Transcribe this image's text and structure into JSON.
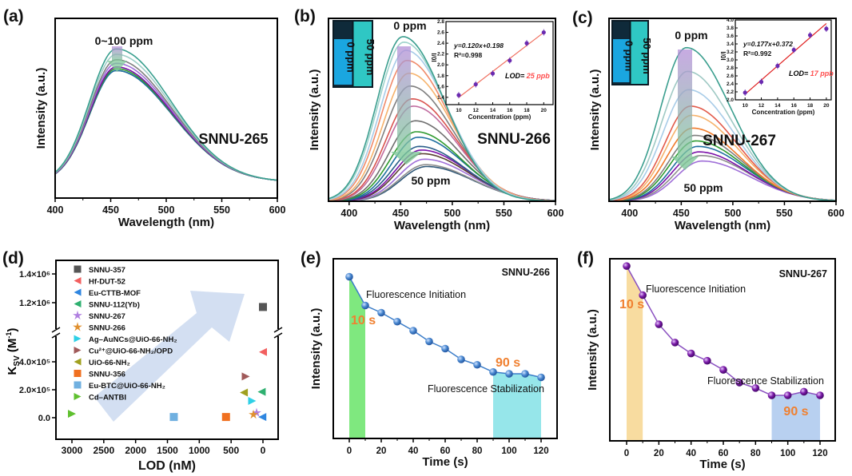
{
  "panel_labels": [
    "(a)",
    "(b)",
    "(c)",
    "(d)",
    "(e)",
    "(f)"
  ],
  "colors": {
    "highlight": "#f08030",
    "lod_value": "#ff4d4d",
    "fit_line_b": "#f07060",
    "fit_line_c": "#e02020",
    "inset_points": "#6a2ab0"
  },
  "chart_data": [
    {
      "type": "line",
      "xlabel": "Wavelength (nm)",
      "ylabel": "Intensity (a.u.)",
      "xlim": [
        400,
        600
      ],
      "xticks": [
        "400",
        "450",
        "500",
        "550",
        "600"
      ],
      "annotations": {
        "range": "0~100 ppm",
        "sample": "SNNU-265"
      },
      "series": [
        {
          "peak_wavelength": 455,
          "peak_intensity": 0.83,
          "color": "#3aa08f"
        },
        {
          "peak_wavelength": 455,
          "peak_intensity": 0.8,
          "color": "#9fcfc8"
        },
        {
          "peak_wavelength": 455,
          "peak_intensity": 0.77,
          "color": "#7f7f7f"
        },
        {
          "peak_wavelength": 455,
          "peak_intensity": 0.75,
          "color": "#a070d8"
        },
        {
          "peak_wavelength": 455,
          "peak_intensity": 0.73,
          "color": "#7a10a8"
        },
        {
          "peak_wavelength": 455,
          "peak_intensity": 0.72,
          "color": "#2e9a2e"
        },
        {
          "peak_wavelength": 455,
          "peak_intensity": 0.71,
          "color": "#1f6fa0"
        },
        {
          "peak_wavelength": 455,
          "peak_intensity": 0.71,
          "color": "#2f5878"
        }
      ]
    },
    {
      "type": "line",
      "xlabel": "Wavelength (nm)",
      "ylabel": "Intensity (a.u.)",
      "xlim": [
        380,
        600
      ],
      "xticks": [
        "400",
        "450",
        "500",
        "550",
        "600"
      ],
      "annotations": {
        "top": "0 ppm",
        "bottom": "50 ppm",
        "sample": "SNNU-266"
      },
      "vials": [
        "0 ppm",
        "50 ppm"
      ],
      "series": [
        {
          "peak_wavelength": 452,
          "peak_intensity": 0.9,
          "color": "#3a9e8e"
        },
        {
          "peak_wavelength": 453,
          "peak_intensity": 0.87,
          "color": "#9fd3cc"
        },
        {
          "peak_wavelength": 455,
          "peak_intensity": 0.825,
          "color": "#a8cce8"
        },
        {
          "peak_wavelength": 456,
          "peak_intensity": 0.77,
          "color": "#f08a6a"
        },
        {
          "peak_wavelength": 458,
          "peak_intensity": 0.7,
          "color": "#f6b26b"
        },
        {
          "peak_wavelength": 459,
          "peak_intensity": 0.63,
          "color": "#7f7f7f"
        },
        {
          "peak_wavelength": 461,
          "peak_intensity": 0.56,
          "color": "#d9534f"
        },
        {
          "peak_wavelength": 462,
          "peak_intensity": 0.52,
          "color": "#c06c9f"
        },
        {
          "peak_wavelength": 464,
          "peak_intensity": 0.44,
          "color": "#6f6f6f"
        },
        {
          "peak_wavelength": 465,
          "peak_intensity": 0.38,
          "color": "#2e9a2e"
        },
        {
          "peak_wavelength": 467,
          "peak_intensity": 0.35,
          "color": "#1f6fa0"
        },
        {
          "peak_wavelength": 468,
          "peak_intensity": 0.3,
          "color": "#2a5e8a"
        },
        {
          "peak_wavelength": 470,
          "peak_intensity": 0.28,
          "color": "#7a10a8"
        },
        {
          "peak_wavelength": 471,
          "peak_intensity": 0.26,
          "color": "#5a4030"
        },
        {
          "peak_wavelength": 473,
          "peak_intensity": 0.23,
          "color": "#a070d8"
        },
        {
          "peak_wavelength": 474,
          "peak_intensity": 0.2,
          "color": "#8e8e8e"
        },
        {
          "peak_wavelength": 475,
          "peak_intensity": 0.19,
          "color": "#2f5878"
        }
      ],
      "inset": {
        "type": "scatter",
        "xlabel": "Concentration (ppm)",
        "ylabel": "I0/I",
        "xlim": [
          8.5,
          21.1
        ],
        "ylim": [
          1.265,
          2.8
        ],
        "xticks": [
          10,
          12,
          14,
          16,
          18,
          20
        ],
        "yticks": [
          1.4,
          1.6,
          1.8,
          2.0,
          2.2,
          2.4,
          2.6,
          2.8
        ],
        "x": [
          10,
          12,
          14,
          16,
          18,
          20
        ],
        "y": [
          1.44,
          1.64,
          1.84,
          2.08,
          2.4,
          2.6
        ],
        "fit": {
          "slope": 0.12,
          "intercept": 0.198
        },
        "equation": "y=0.120x+0.198",
        "r2_label": "R²=0.998",
        "lod_label": "LOD= ",
        "lod_value": "25 ppb"
      }
    },
    {
      "type": "line",
      "xlabel": "Wavelength (nm)",
      "ylabel": "Intensity (a.u.)",
      "xlim": [
        380,
        600
      ],
      "xticks": [
        "400",
        "450",
        "500",
        "550",
        "600"
      ],
      "annotations": {
        "top": "0 ppm",
        "bottom": "50 ppm",
        "sample": "SNNU-267"
      },
      "vials": [
        "0 ppm",
        "50 ppm"
      ],
      "series": [
        {
          "peak_wavelength": 455,
          "peak_intensity": 0.84,
          "color": "#3a9e8e"
        },
        {
          "peak_wavelength": 456,
          "peak_intensity": 0.71,
          "color": "#9fc9c4"
        },
        {
          "peak_wavelength": 457,
          "peak_intensity": 0.61,
          "color": "#a8cce8"
        },
        {
          "peak_wavelength": 459,
          "peak_intensity": 0.52,
          "color": "#e25a4a"
        },
        {
          "peak_wavelength": 460,
          "peak_intensity": 0.47,
          "color": "#f6b26b"
        },
        {
          "peak_wavelength": 461,
          "peak_intensity": 0.4,
          "color": "#f07a2a"
        },
        {
          "peak_wavelength": 463,
          "peak_intensity": 0.36,
          "color": "#7f7f7f"
        },
        {
          "peak_wavelength": 464,
          "peak_intensity": 0.33,
          "color": "#2e9a2e"
        },
        {
          "peak_wavelength": 466,
          "peak_intensity": 0.3,
          "color": "#1f6fa0"
        },
        {
          "peak_wavelength": 467,
          "peak_intensity": 0.27,
          "color": "#7a10a8"
        },
        {
          "peak_wavelength": 469,
          "peak_intensity": 0.25,
          "color": "#8e8e8e"
        },
        {
          "peak_wavelength": 470,
          "peak_intensity": 0.22,
          "color": "#a070d8"
        }
      ],
      "inset": {
        "type": "scatter",
        "xlabel": "Concentration (ppm)",
        "ylabel": "I0/I",
        "xlim": [
          8.8,
          20.6
        ],
        "ylim": [
          2.0,
          4.0
        ],
        "xticks": [
          10,
          12,
          14,
          16,
          18,
          20
        ],
        "yticks": [
          2.0,
          2.2,
          2.4,
          2.6,
          2.8,
          3.0,
          3.2,
          3.4,
          3.6,
          3.8,
          4.0
        ],
        "x": [
          10,
          12,
          14,
          16,
          18,
          20
        ],
        "y": [
          2.18,
          2.45,
          2.85,
          3.25,
          3.62,
          3.78
        ],
        "fit": {
          "slope": 0.177,
          "intercept": 0.372
        },
        "equation": "y=0.177x+0.372",
        "r2_label": "R²=0.992",
        "lod_label": "LOD= ",
        "lod_value": "17 ppb"
      }
    },
    {
      "type": "scatter",
      "xlabel": "LOD (nM)",
      "ylabel_parts": {
        "main": "K",
        "sub": "SV",
        "unit": " (M",
        "sup": "-1",
        "close": ")"
      },
      "xlim": [
        3250,
        -240
      ],
      "x_reversed": true,
      "y_axis_break": [
        606000,
        990000
      ],
      "xticks": [
        {
          "v": 3000,
          "label": "3000"
        },
        {
          "v": 2500,
          "label": "2500"
        },
        {
          "v": 2000,
          "label": "2000"
        },
        {
          "v": 1500,
          "label": "1500"
        },
        {
          "v": 1000,
          "label": "1000"
        },
        {
          "v": 500,
          "label": "500"
        },
        {
          "v": 0,
          "label": "0"
        }
      ],
      "yticks": [
        {
          "v": 0,
          "label": "0.0"
        },
        {
          "v": 200000,
          "label": "2.0×10⁵"
        },
        {
          "v": 400000,
          "label": "4.0×10⁵"
        },
        {
          "v": 1200000,
          "label": "1.2×10⁶"
        },
        {
          "v": 1400000,
          "label": "1.4×10⁶"
        }
      ],
      "legend_position": "top-left",
      "points": [
        {
          "name": "SNNU-357",
          "lod": 0,
          "ksv": 1170000,
          "marker": "square",
          "color": "#555555"
        },
        {
          "name": "Hf-DUT-52",
          "lod": 0,
          "ksv": 470000,
          "marker": "triangle-left",
          "color": "#f25f5f"
        },
        {
          "name": "Eu-CTTB-MOF",
          "lod": 10,
          "ksv": 5000,
          "marker": "triangle-left",
          "color": "#2f86e0"
        },
        {
          "name": "SNNU-112(Yb)",
          "lod": 20,
          "ksv": 185000,
          "marker": "triangle-left",
          "color": "#2fb070"
        },
        {
          "name": "SNNU-267",
          "lod": 100,
          "ksv": 35000,
          "marker": "star",
          "color": "#b07fe0"
        },
        {
          "name": "SNNU-266",
          "lod": 150,
          "ksv": 22000,
          "marker": "star",
          "color": "#e0902f"
        },
        {
          "name": "Ag–AuNCs@UiO-66-NH₂",
          "lod": 170,
          "ksv": 120000,
          "marker": "triangle-right",
          "color": "#2fd0e6"
        },
        {
          "name": "Cu²⁺@UiO-66-NH₂/OPD",
          "lod": 270,
          "ksv": 295000,
          "marker": "triangle-right",
          "color": "#a05a5a"
        },
        {
          "name": "UiO-66-NH₂",
          "lod": 300,
          "ksv": 180000,
          "marker": "triangle-left",
          "color": "#a0a01f"
        },
        {
          "name": "SNNU-356",
          "lod": 580,
          "ksv": 5000,
          "marker": "square",
          "color": "#f07020"
        },
        {
          "name": "Eu-BTC@UiO-66-NH₂",
          "lod": 1400,
          "ksv": 5000,
          "marker": "square",
          "color": "#70b0e0"
        },
        {
          "name": "Cd–ANTBI",
          "lod": 3000,
          "ksv": 28000,
          "marker": "triangle-right",
          "color": "#5fc02f"
        }
      ]
    },
    {
      "type": "line",
      "xlabel": "Time (s)",
      "ylabel": "Intensity (a.u.)",
      "xlim": [
        -10,
        130
      ],
      "ylim": [
        0,
        1
      ],
      "xticks": [
        0,
        20,
        40,
        60,
        80,
        100,
        120
      ],
      "line_color": "#3a7cc8",
      "x": [
        0,
        10,
        20,
        30,
        40,
        50,
        60,
        70,
        80,
        90,
        100,
        110,
        120
      ],
      "y": [
        0.9,
        0.74,
        0.7,
        0.65,
        0.6,
        0.54,
        0.5,
        0.44,
        0.41,
        0.37,
        0.36,
        0.36,
        0.34
      ],
      "shaded_regions": [
        {
          "from": 0,
          "to": 10,
          "color": "#7fe87f"
        },
        {
          "from": 90,
          "to": 120,
          "color": "#96e6ea"
        }
      ],
      "annotations": {
        "sample": "SNNU-266",
        "initiation": "Fluorescence Initiation",
        "initiation_time": "10 s",
        "stabilization": "Fluorescence Stabilization",
        "stabilization_time": "90 s"
      }
    },
    {
      "type": "line",
      "xlabel": "Time (s)",
      "ylabel": "Intensity (a.u.)",
      "xlim": [
        -10,
        130
      ],
      "ylim": [
        0,
        1
      ],
      "xticks": [
        0,
        20,
        40,
        60,
        80,
        100,
        120
      ],
      "line_color": "#8a50c0",
      "x": [
        0,
        10,
        20,
        30,
        40,
        50,
        60,
        70,
        80,
        90,
        100,
        110,
        120
      ],
      "y": [
        0.96,
        0.8,
        0.64,
        0.54,
        0.48,
        0.44,
        0.39,
        0.32,
        0.29,
        0.25,
        0.25,
        0.27,
        0.25
      ],
      "shaded_regions": [
        {
          "from": 0,
          "to": 10,
          "color": "#f8dca0"
        },
        {
          "from": 90,
          "to": 120,
          "color": "#b8d0f0"
        }
      ],
      "annotations": {
        "sample": "SNNU-267",
        "initiation": "Fluorescence Initiation",
        "initiation_time": "10 s",
        "stabilization": "Fluorescence Stabilization",
        "stabilization_time": "90 s"
      }
    }
  ]
}
